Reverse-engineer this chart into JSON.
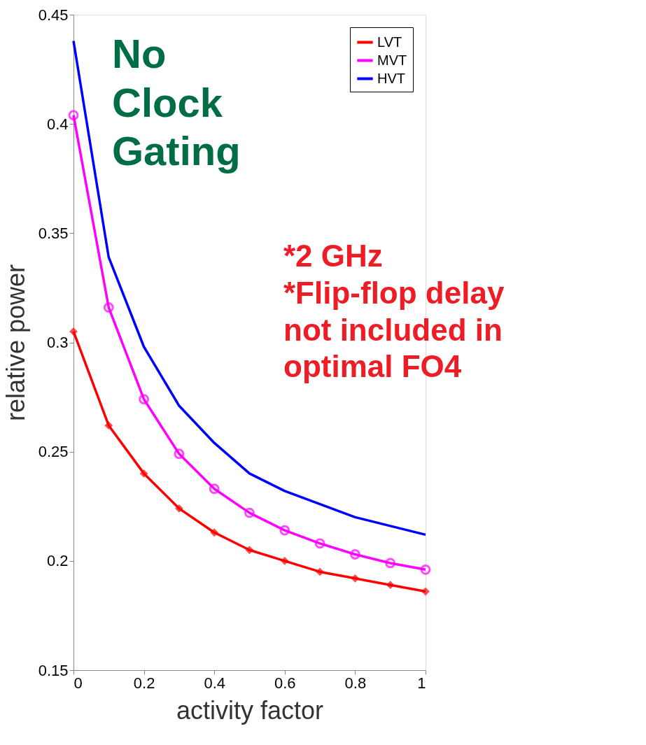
{
  "chart_data": {
    "type": "line",
    "xlabel": "activity factor",
    "ylabel": "relative power",
    "x": [
      0,
      0.1,
      0.2,
      0.3,
      0.4,
      0.5,
      0.6,
      0.7,
      0.8,
      0.9,
      1
    ],
    "series": [
      {
        "name": "LVT",
        "color": "#ff0000",
        "marker": "diamond",
        "values": [
          0.305,
          0.262,
          0.24,
          0.224,
          0.213,
          0.205,
          0.2,
          0.195,
          0.192,
          0.189,
          0.186
        ]
      },
      {
        "name": "MVT",
        "color": "#ff00ff",
        "marker": "circle",
        "values": [
          0.404,
          0.316,
          0.274,
          0.249,
          0.233,
          0.222,
          0.214,
          0.208,
          0.203,
          0.199,
          0.196
        ]
      },
      {
        "name": "HVT",
        "color": "#0000ff",
        "marker": "none",
        "values": [
          0.438,
          0.339,
          0.298,
          0.271,
          0.254,
          0.24,
          0.232,
          0.226,
          0.22,
          0.216,
          0.212
        ]
      }
    ],
    "xlim": [
      0,
      1
    ],
    "xticks": [
      0,
      0.2,
      0.4,
      0.6,
      0.8,
      1
    ],
    "ylim": [
      0.15,
      0.45
    ],
    "yticks": [
      0.15,
      0.2,
      0.25,
      0.3,
      0.35,
      0.4,
      0.45
    ],
    "grid": false,
    "legend": "top right",
    "annotations": [
      "No\nClock\nGating",
      "*2 GHz\n*Flip-flop delay\nnot included in\noptimal FO4"
    ]
  }
}
